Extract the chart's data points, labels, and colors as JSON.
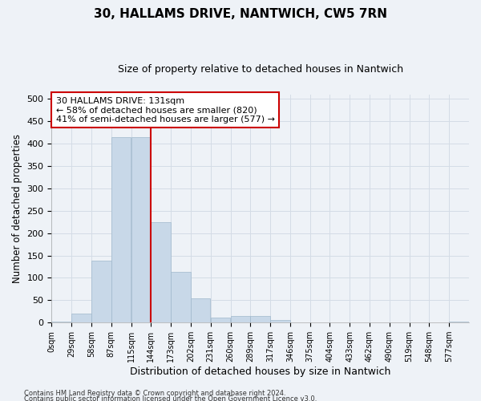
{
  "title": "30, HALLAMS DRIVE, NANTWICH, CW5 7RN",
  "subtitle": "Size of property relative to detached houses in Nantwich",
  "xlabel": "Distribution of detached houses by size in Nantwich",
  "ylabel": "Number of detached properties",
  "bar_labels": [
    "0sqm",
    "29sqm",
    "58sqm",
    "87sqm",
    "115sqm",
    "144sqm",
    "173sqm",
    "202sqm",
    "231sqm",
    "260sqm",
    "289sqm",
    "317sqm",
    "346sqm",
    "375sqm",
    "404sqm",
    "433sqm",
    "462sqm",
    "490sqm",
    "519sqm",
    "548sqm",
    "577sqm"
  ],
  "bar_heights": [
    3,
    21,
    138,
    415,
    415,
    224,
    114,
    55,
    12,
    15,
    15,
    6,
    1,
    0,
    1,
    0,
    1,
    0,
    0,
    0,
    2
  ],
  "bar_color": "#c8d8e8",
  "bar_edge_color": "#a0b8cc",
  "grid_color": "#d4dce6",
  "vline_color": "#cc0000",
  "annotation_text": "30 HALLAMS DRIVE: 131sqm\n← 58% of detached houses are smaller (820)\n41% of semi-detached houses are larger (577) →",
  "annotation_box_color": "#ffffff",
  "annotation_box_edge": "#cc0000",
  "ylim": [
    0,
    510
  ],
  "yticks": [
    0,
    50,
    100,
    150,
    200,
    250,
    300,
    350,
    400,
    450,
    500
  ],
  "footer1": "Contains HM Land Registry data © Crown copyright and database right 2024.",
  "footer2": "Contains public sector information licensed under the Open Government Licence v3.0.",
  "background_color": "#eef2f7"
}
